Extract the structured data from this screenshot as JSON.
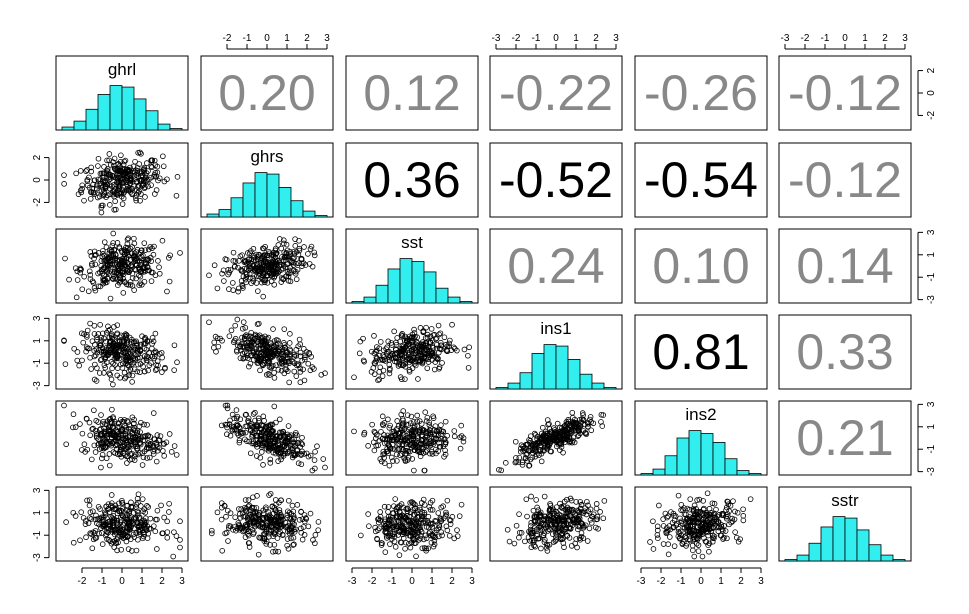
{
  "chart_data": {
    "type": "scatter",
    "title": "",
    "variables": [
      "ghrl",
      "ghrs",
      "sst",
      "ins1",
      "ins2",
      "sstr"
    ],
    "colors": {
      "histogram_fill": "#33EEEE",
      "significant_text": "#000000",
      "nonsignificant_text": "#888888",
      "points": "#000000"
    },
    "correlations": [
      {
        "row": 0,
        "col": 1,
        "label": "0.20",
        "significant": false
      },
      {
        "row": 0,
        "col": 2,
        "label": "0.12",
        "significant": false
      },
      {
        "row": 0,
        "col": 3,
        "label": "-0.22",
        "significant": false
      },
      {
        "row": 0,
        "col": 4,
        "label": "-0.26",
        "significant": false
      },
      {
        "row": 0,
        "col": 5,
        "label": "-0.12",
        "significant": false
      },
      {
        "row": 1,
        "col": 2,
        "label": "0.36",
        "significant": true
      },
      {
        "row": 1,
        "col": 3,
        "label": "-0.52",
        "significant": true
      },
      {
        "row": 1,
        "col": 4,
        "label": "-0.54",
        "significant": true
      },
      {
        "row": 1,
        "col": 5,
        "label": "-0.12",
        "significant": false
      },
      {
        "row": 2,
        "col": 3,
        "label": "0.24",
        "significant": false
      },
      {
        "row": 2,
        "col": 4,
        "label": "0.10",
        "significant": false
      },
      {
        "row": 2,
        "col": 5,
        "label": "0.14",
        "significant": false
      },
      {
        "row": 3,
        "col": 4,
        "label": "0.81",
        "significant": true
      },
      {
        "row": 3,
        "col": 5,
        "label": "0.33",
        "significant": false
      },
      {
        "row": 4,
        "col": 5,
        "label": "0.21",
        "significant": false
      }
    ],
    "scatter_r": [
      [
        1,
        0.2,
        0.12,
        -0.22,
        -0.26,
        -0.12
      ],
      [
        0.2,
        1,
        0.36,
        -0.52,
        -0.54,
        -0.12
      ],
      [
        0.12,
        0.36,
        1,
        0.24,
        0.1,
        0.14
      ],
      [
        -0.22,
        -0.52,
        0.24,
        1,
        0.81,
        0.33
      ],
      [
        -0.26,
        -0.54,
        0.1,
        0.81,
        1,
        0.21
      ],
      [
        -0.12,
        -0.12,
        0.14,
        0.33,
        0.21,
        1
      ]
    ],
    "histogram_counts": [
      [
        4,
        12,
        28,
        48,
        60,
        58,
        42,
        26,
        8,
        2
      ],
      [
        4,
        10,
        26,
        46,
        60,
        58,
        40,
        22,
        8,
        2
      ],
      [
        2,
        8,
        24,
        46,
        60,
        56,
        42,
        20,
        8,
        2
      ],
      [
        2,
        8,
        22,
        48,
        60,
        58,
        40,
        20,
        8,
        2
      ],
      [
        2,
        8,
        26,
        50,
        60,
        56,
        44,
        22,
        6,
        2
      ],
      [
        2,
        8,
        24,
        46,
        60,
        58,
        42,
        22,
        8,
        2
      ]
    ],
    "histogram_range": [
      -3,
      3
    ],
    "n_points": 300,
    "axes": {
      "range": [
        -3.3,
        3.3
      ],
      "top": [
        {
          "col": 1,
          "ticks": [
            "-2",
            "-1",
            "0",
            "1",
            "2",
            "3"
          ]
        },
        {
          "col": 3,
          "ticks": [
            "-3",
            "-2",
            "-1",
            "0",
            "1",
            "2",
            "3"
          ]
        },
        {
          "col": 5,
          "ticks": [
            "-3",
            "-2",
            "-1",
            "0",
            "1",
            "2",
            "3"
          ]
        }
      ],
      "bottom": [
        {
          "col": 0,
          "ticks": [
            "-2",
            "-1",
            "0",
            "1",
            "2",
            "3"
          ]
        },
        {
          "col": 2,
          "ticks": [
            "-3",
            "-2",
            "-1",
            "0",
            "1",
            "2",
            "3"
          ]
        },
        {
          "col": 4,
          "ticks": [
            "-3",
            "-2",
            "-1",
            "0",
            "1",
            "2",
            "3"
          ]
        }
      ],
      "left": [
        {
          "row": 1,
          "ticks": [
            "-2",
            "0",
            "2"
          ]
        },
        {
          "row": 3,
          "ticks": [
            "-3",
            "-1",
            "1",
            "3"
          ]
        },
        {
          "row": 5,
          "ticks": [
            "-3",
            "-1",
            "1",
            "3"
          ]
        }
      ],
      "right": [
        {
          "row": 0,
          "ticks": [
            "-2",
            "0",
            "2"
          ]
        },
        {
          "row": 2,
          "ticks": [
            "-3",
            "-1",
            "1",
            "3"
          ]
        },
        {
          "row": 4,
          "ticks": [
            "-3",
            "-1",
            "1",
            "3"
          ]
        }
      ]
    }
  }
}
